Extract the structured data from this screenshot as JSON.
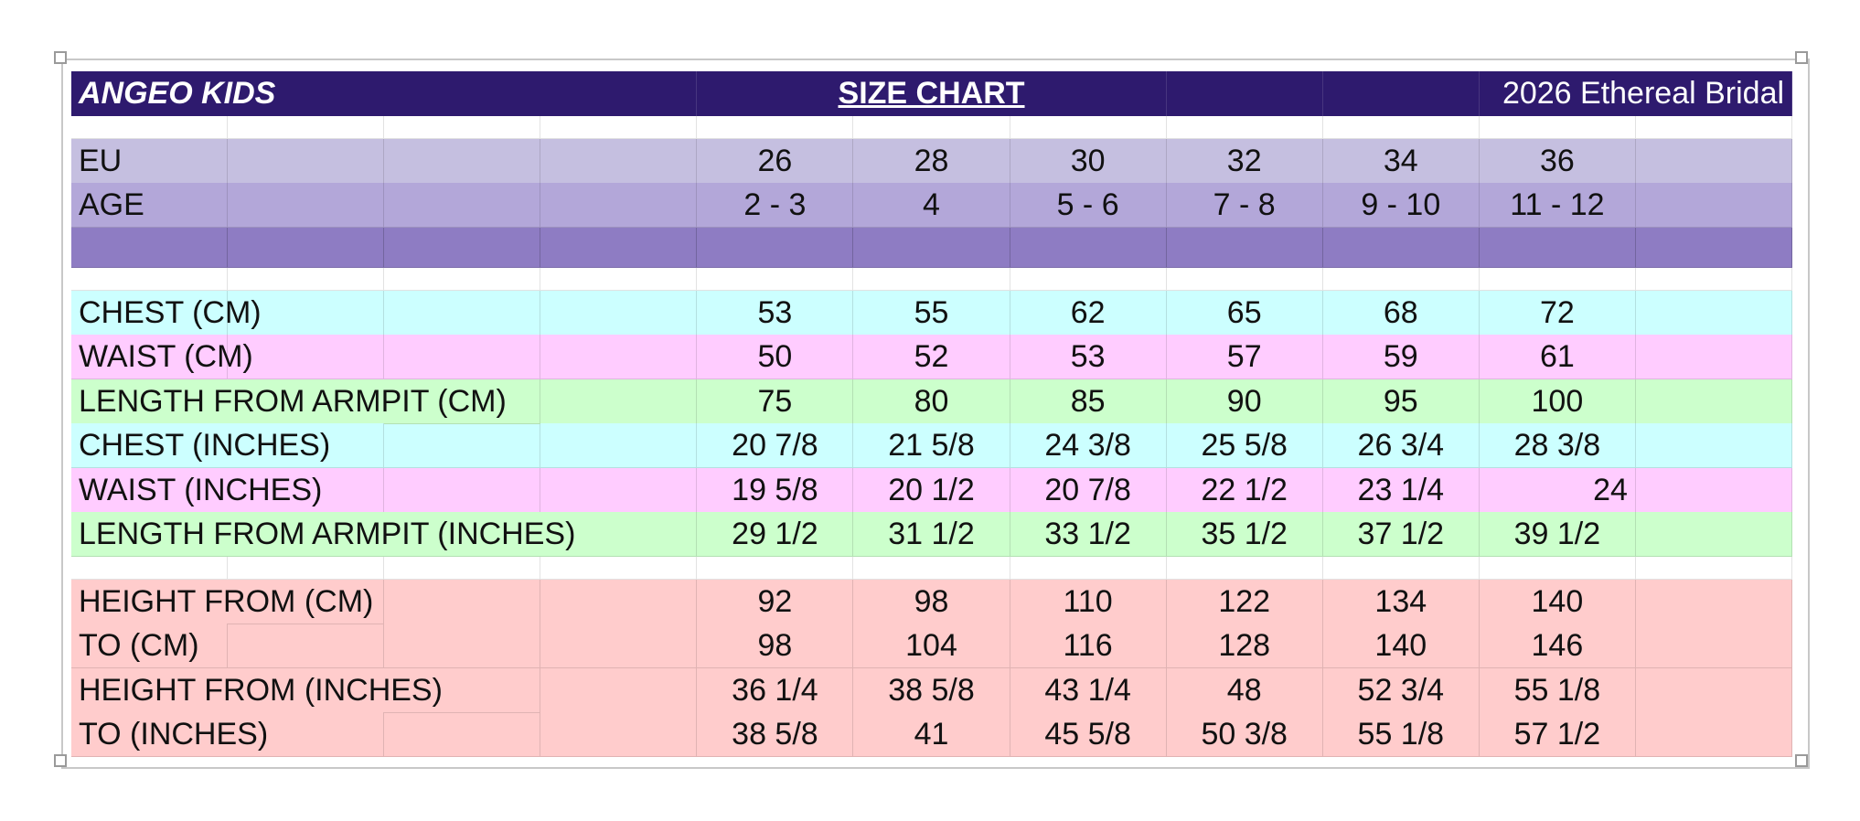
{
  "header": {
    "brand": "ANGEO KIDS",
    "title": "SIZE CHART",
    "collection": "2026 Ethereal Bridal"
  },
  "eu": {
    "label": "EU",
    "values": [
      "26",
      "28",
      "30",
      "32",
      "34",
      "36"
    ]
  },
  "age": {
    "label": "AGE",
    "values": [
      "2 - 3",
      "4",
      "5 - 6",
      "7 - 8",
      "9 - 10",
      "11 - 12"
    ]
  },
  "measurements": [
    {
      "label": "CHEST (CM)",
      "values": [
        "53",
        "55",
        "62",
        "65",
        "68",
        "72"
      ],
      "color": "#ccffff"
    },
    {
      "label": "WAIST (CM)",
      "values": [
        "50",
        "52",
        "53",
        "57",
        "59",
        "61"
      ],
      "color": "#ffccff"
    },
    {
      "label": "LENGTH FROM ARMPIT (CM)",
      "values": [
        "75",
        "80",
        "85",
        "90",
        "95",
        "100"
      ],
      "color": "#ccffcc"
    },
    {
      "label": "CHEST (INCHES)",
      "values": [
        "20 7/8",
        "21 5/8",
        "24 3/8",
        "25 5/8",
        "26 3/4",
        "28 3/8"
      ],
      "color": "#ccffff"
    },
    {
      "label": "WAIST (INCHES)",
      "values": [
        "19 5/8",
        "20 1/2",
        "20 7/8",
        "22 1/2",
        "23 1/4",
        "24"
      ],
      "color": "#ffccff"
    },
    {
      "label": "LENGTH FROM ARMPIT (INCHES)",
      "values": [
        "29 1/2",
        "31 1/2",
        "33 1/2",
        "35 1/2",
        "37 1/2",
        "39 1/2"
      ],
      "color": "#ccffcc"
    }
  ],
  "heights": [
    {
      "label": "HEIGHT FROM (CM)",
      "values": [
        "92",
        "98",
        "110",
        "122",
        "134",
        "140"
      ]
    },
    {
      "label": "TO (CM)",
      "values": [
        "98",
        "104",
        "116",
        "128",
        "140",
        "146"
      ]
    },
    {
      "label": "HEIGHT FROM (INCHES)",
      "values": [
        "36 1/4",
        "38 5/8",
        "43 1/4",
        "48",
        "52 3/4",
        "55 1/8"
      ]
    },
    {
      "label": "TO (INCHES)",
      "values": [
        "38 5/8",
        "41",
        "45 5/8",
        "50 3/8",
        "55 1/8",
        "57 1/2"
      ]
    }
  ],
  "colors": {
    "header": "#2e1a6e",
    "eu_row": "#c5bfe0",
    "age_row": "#b3a7d9",
    "band_row": "#8e7cc3",
    "height_rows": "#ffcccc"
  }
}
